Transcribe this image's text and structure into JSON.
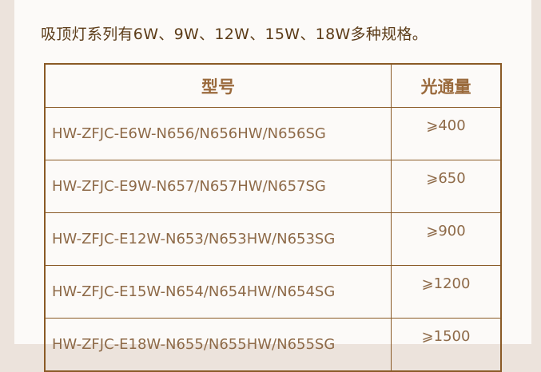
{
  "title": "吸顶灯系列有6W、9W、12W、15W、18W多种规格。",
  "table": {
    "headers": [
      "型号",
      "光通量"
    ],
    "rows": [
      {
        "model": "HW-ZFJC-E6W-N656/N656HW/N656SG",
        "flux": "⩾400"
      },
      {
        "model": "HW-ZFJC-E9W-N657/N657HW/N657SG",
        "flux": "⩾650"
      },
      {
        "model": "HW-ZFJC-E12W-N653/N653HW/N653SG",
        "flux": "⩾900"
      },
      {
        "model": "HW-ZFJC-E15W-N654/N654HW/N654SG",
        "flux": "⩾1200"
      },
      {
        "model": "HW-ZFJC-E18W-N655/N655HW/N655SG",
        "flux": "⩾1500"
      }
    ]
  }
}
